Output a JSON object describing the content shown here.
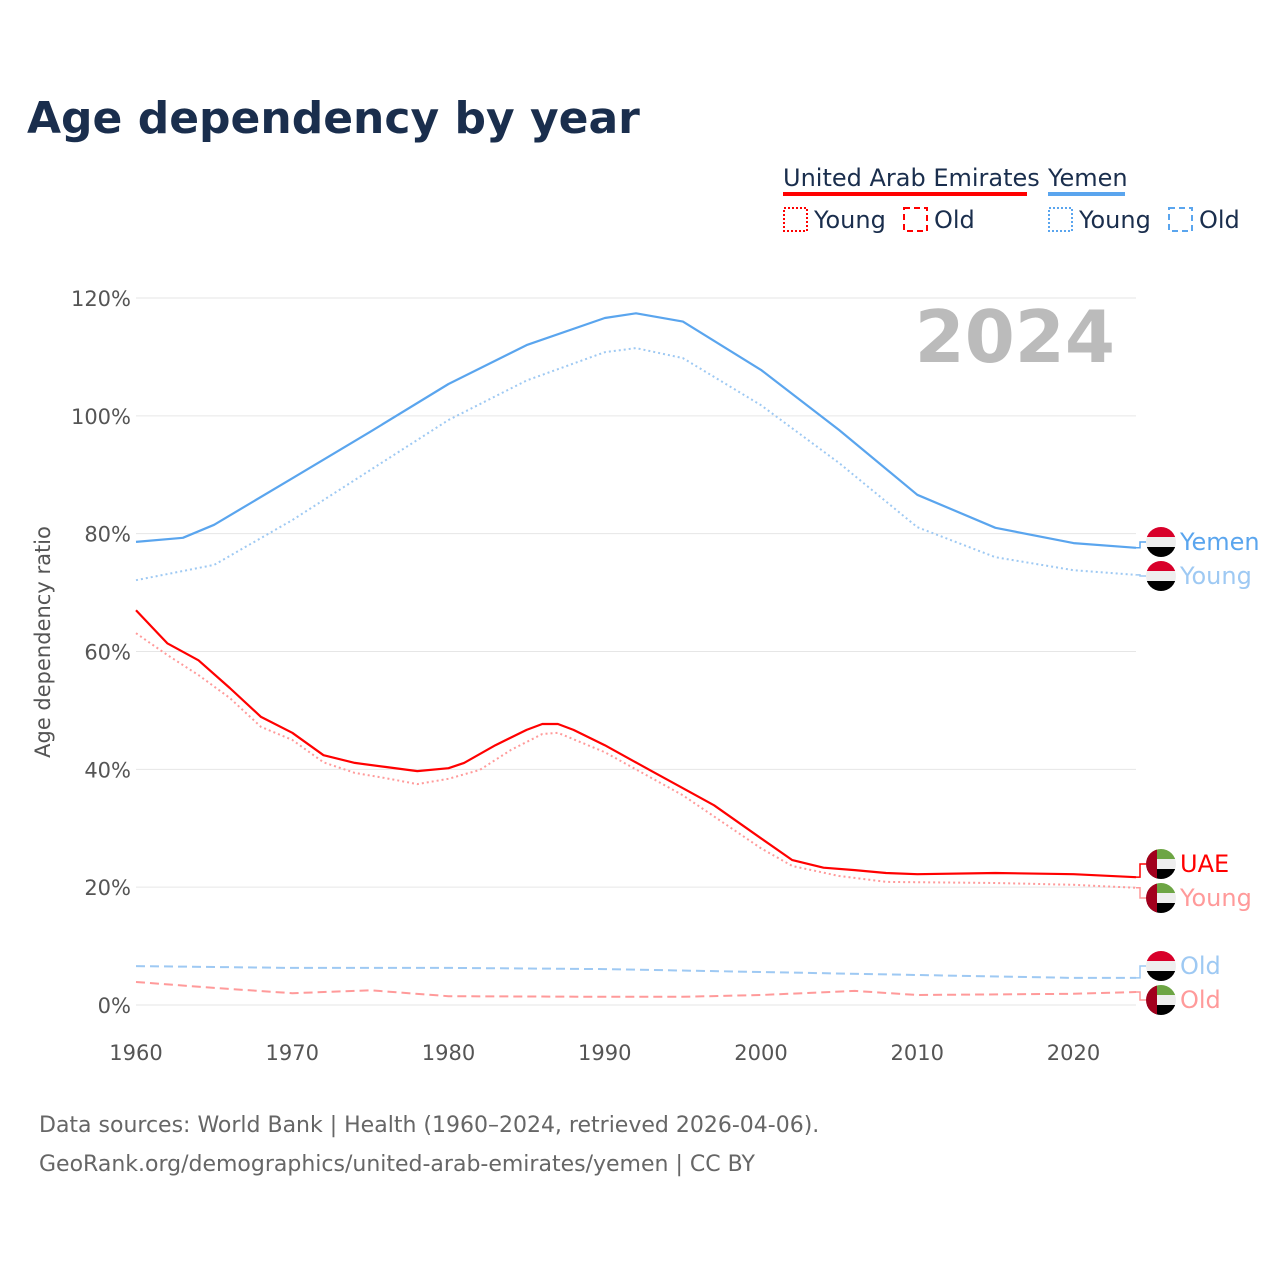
{
  "chart_data": {
    "type": "line",
    "title": "Age dependency by year",
    "ylabel": "Age dependency ratio",
    "xlabel": "",
    "year_watermark": "2024",
    "xlim": [
      1960,
      2024
    ],
    "ylim": [
      0,
      120
    ],
    "x_ticks": [
      "1960",
      "1970",
      "1980",
      "1990",
      "2000",
      "2010",
      "2020"
    ],
    "y_ticks": [
      "0%",
      "20%",
      "40%",
      "60%",
      "80%",
      "100%",
      "120%"
    ],
    "grid": true,
    "legend": {
      "placement": "top-right",
      "groups": [
        {
          "name": "United Arab Emirates",
          "color": "#ff0000",
          "items": [
            "Young",
            "Old"
          ]
        },
        {
          "name": "Yemen",
          "color": "#5aa5ee",
          "items": [
            "Young",
            "Old"
          ]
        }
      ]
    },
    "series": [
      {
        "name": "Yemen",
        "label": "Yemen",
        "flag": "yemen",
        "color": "#5aa5ee",
        "style": "solid",
        "points": [
          [
            1960,
            78.6
          ],
          [
            1963,
            79.3
          ],
          [
            1965,
            81.5
          ],
          [
            1970,
            89.4
          ],
          [
            1975,
            97.3
          ],
          [
            1980,
            105.4
          ],
          [
            1985,
            112
          ],
          [
            1990,
            116.6
          ],
          [
            1992,
            117.4
          ],
          [
            1995,
            116
          ],
          [
            2000,
            107.8
          ],
          [
            2005,
            97.6
          ],
          [
            2010,
            86.6
          ],
          [
            2015,
            81
          ],
          [
            2020,
            78.4
          ],
          [
            2024,
            77.6
          ]
        ]
      },
      {
        "name": "Yemen Young",
        "label": "Young",
        "flag": "yemen",
        "color": "#9ec9f3",
        "style": "dotted",
        "points": [
          [
            1960,
            72.1
          ],
          [
            1965,
            74.7
          ],
          [
            1970,
            82.3
          ],
          [
            1975,
            90.8
          ],
          [
            1980,
            99.3
          ],
          [
            1985,
            106
          ],
          [
            1990,
            110.8
          ],
          [
            1992,
            111.5
          ],
          [
            1995,
            109.8
          ],
          [
            2000,
            101.8
          ],
          [
            2005,
            92
          ],
          [
            2010,
            81.1
          ],
          [
            2015,
            76
          ],
          [
            2020,
            73.8
          ],
          [
            2024,
            73
          ]
        ]
      },
      {
        "name": "UAE",
        "label": "UAE",
        "flag": "uae",
        "color": "#ff0000",
        "style": "solid",
        "points": [
          [
            1960,
            67
          ],
          [
            1962,
            61.4
          ],
          [
            1964,
            58.5
          ],
          [
            1966,
            53.8
          ],
          [
            1968,
            48.9
          ],
          [
            1970,
            46.2
          ],
          [
            1972,
            42.4
          ],
          [
            1974,
            41.1
          ],
          [
            1976,
            40.4
          ],
          [
            1978,
            39.7
          ],
          [
            1980,
            40.2
          ],
          [
            1981,
            41.1
          ],
          [
            1983,
            44.1
          ],
          [
            1985,
            46.7
          ],
          [
            1986,
            47.7
          ],
          [
            1987,
            47.7
          ],
          [
            1988,
            46.7
          ],
          [
            1990,
            44.1
          ],
          [
            1993,
            39.7
          ],
          [
            1995,
            36.8
          ],
          [
            1997,
            33.9
          ],
          [
            2000,
            28.3
          ],
          [
            2002,
            24.6
          ],
          [
            2004,
            23.3
          ],
          [
            2006,
            22.9
          ],
          [
            2008,
            22.4
          ],
          [
            2010,
            22.2
          ],
          [
            2015,
            22.4
          ],
          [
            2020,
            22.2
          ],
          [
            2024,
            21.7
          ]
        ]
      },
      {
        "name": "UAE Young",
        "label": "Young",
        "flag": "uae",
        "color": "#ff9a9a",
        "style": "dotted",
        "points": [
          [
            1960,
            63.1
          ],
          [
            1962,
            59.4
          ],
          [
            1964,
            56
          ],
          [
            1966,
            52.1
          ],
          [
            1968,
            47.2
          ],
          [
            1970,
            45
          ],
          [
            1972,
            41.2
          ],
          [
            1974,
            39.4
          ],
          [
            1976,
            38.5
          ],
          [
            1978,
            37.5
          ],
          [
            1980,
            38.4
          ],
          [
            1982,
            39.9
          ],
          [
            1984,
            43.3
          ],
          [
            1986,
            46
          ],
          [
            1987,
            46.2
          ],
          [
            1990,
            42.9
          ],
          [
            1995,
            35.6
          ],
          [
            2000,
            26.6
          ],
          [
            2002,
            23.6
          ],
          [
            2005,
            21.9
          ],
          [
            2008,
            20.9
          ],
          [
            2015,
            20.7
          ],
          [
            2020,
            20.4
          ],
          [
            2024,
            19.9
          ]
        ]
      },
      {
        "name": "Yemen Old",
        "label": "Old",
        "flag": "yemen",
        "color": "#9ec9f3",
        "style": "dashed",
        "points": [
          [
            1960,
            6.6
          ],
          [
            1970,
            6.3
          ],
          [
            1980,
            6.3
          ],
          [
            1990,
            6.1
          ],
          [
            2000,
            5.6
          ],
          [
            2010,
            5.1
          ],
          [
            2020,
            4.6
          ],
          [
            2024,
            4.6
          ]
        ]
      },
      {
        "name": "UAE Old",
        "label": "Old",
        "flag": "uae",
        "color": "#ff9a9a",
        "style": "dashed",
        "points": [
          [
            1960,
            3.9
          ],
          [
            1965,
            2.9
          ],
          [
            1970,
            2.0
          ],
          [
            1975,
            2.5
          ],
          [
            1980,
            1.5
          ],
          [
            1990,
            1.4
          ],
          [
            1995,
            1.4
          ],
          [
            2000,
            1.7
          ],
          [
            2006,
            2.4
          ],
          [
            2010,
            1.7
          ],
          [
            2020,
            1.9
          ],
          [
            2024,
            2.2
          ]
        ]
      }
    ]
  },
  "footer": {
    "source": "Data sources: World Bank | Health (1960–2024, retrieved 2026-04-06).",
    "url": "GeoRank.org/demographics/united-arab-emirates/yemen | CC BY"
  }
}
